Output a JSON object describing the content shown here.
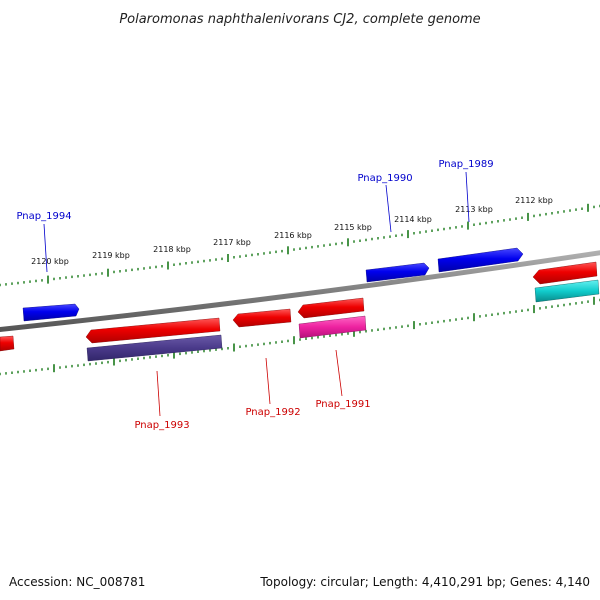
{
  "title": "Polaromonas naphthalenivorans CJ2, complete genome",
  "footer": {
    "accession": "Accession: NC_008781",
    "summary": "Topology: circular; Length: 4,410,291 bp; Genes: 4,140"
  },
  "colors": {
    "forward_label": "#0000cc",
    "reverse_label": "#cc0000",
    "backbone": "#7f7f7f",
    "tick": "#1a7a1a"
  },
  "ticks": [
    {
      "label": "2120 kbp",
      "kbp": 2120
    },
    {
      "label": "2119 kbp",
      "kbp": 2119
    },
    {
      "label": "2118 kbp",
      "kbp": 2118
    },
    {
      "label": "2117 kbp",
      "kbp": 2117
    },
    {
      "label": "2116 kbp",
      "kbp": 2116
    },
    {
      "label": "2115 kbp",
      "kbp": 2115
    },
    {
      "label": "2114 kbp",
      "kbp": 2114
    },
    {
      "label": "2113 kbp",
      "kbp": 2113
    },
    {
      "label": "2112 kbp",
      "kbp": 2112
    }
  ],
  "gene_labels": [
    {
      "name": "Pnap_1994",
      "strand": "forward"
    },
    {
      "name": "Pnap_1990",
      "strand": "forward"
    },
    {
      "name": "Pnap_1989",
      "strand": "forward"
    },
    {
      "name": "Pnap_1993",
      "strand": "reverse"
    },
    {
      "name": "Pnap_1992",
      "strand": "reverse"
    },
    {
      "name": "Pnap_1991",
      "strand": "reverse"
    }
  ]
}
